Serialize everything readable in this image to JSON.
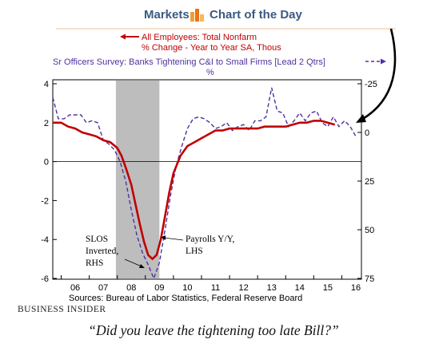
{
  "header": {
    "brand_left": "Markets",
    "brand_right": "Chart of the Day"
  },
  "chart_data": {
    "type": "line",
    "legend": [
      {
        "text": "All Employees: Total Nonfarm",
        "color": "#c00000",
        "marker": "arrow-left"
      },
      {
        "text": "% Change - Year to Year   SA, Thous",
        "color": "#c00000"
      },
      {
        "text": "Sr Officers Survey: Banks Tightening C&I to Small Firms [Lead 2 Qtrs]",
        "color": "#5030a0",
        "marker": "arrow-right"
      },
      {
        "text": "%",
        "color": "#5030a0"
      }
    ],
    "x_tick_labels": [
      "06",
      "07",
      "08",
      "09",
      "10",
      "11",
      "12",
      "13",
      "14",
      "15",
      "16"
    ],
    "y_left": {
      "min": -6,
      "max": 4,
      "ticks": [
        "4",
        "2",
        "0",
        "-2",
        "-4",
        "-6"
      ]
    },
    "y_right": {
      "min": -25,
      "max": 75,
      "inverted": true,
      "ticks": [
        "-25",
        "0",
        "25",
        "50",
        "75"
      ]
    },
    "recession_shading": {
      "start": 2007.95,
      "end": 2009.5,
      "color": "#bdbdbd"
    },
    "zero_line": true,
    "series": [
      {
        "name": "Payrolls Y/Y, LHS",
        "color": "#c00000",
        "style": "solid",
        "axis": "left",
        "x": [
          2005.7,
          2006.0,
          2006.25,
          2006.5,
          2006.75,
          2007.0,
          2007.25,
          2007.5,
          2007.75,
          2008.0,
          2008.15,
          2008.3,
          2008.5,
          2008.65,
          2008.8,
          2008.95,
          2009.1,
          2009.25,
          2009.4,
          2009.55,
          2009.7,
          2009.85,
          2010.0,
          2010.25,
          2010.5,
          2010.75,
          2011.0,
          2011.25,
          2011.5,
          2011.75,
          2012.0,
          2012.25,
          2012.5,
          2012.75,
          2013.0,
          2013.25,
          2013.5,
          2013.75,
          2014.0,
          2014.25,
          2014.5,
          2014.75,
          2015.0,
          2015.25,
          2015.5,
          2015.75
        ],
        "y": [
          2.0,
          2.0,
          1.8,
          1.7,
          1.5,
          1.4,
          1.3,
          1.1,
          1.0,
          0.7,
          0.3,
          -0.3,
          -1.2,
          -2.2,
          -3.2,
          -4.1,
          -4.8,
          -5.0,
          -4.8,
          -4.0,
          -2.8,
          -1.6,
          -0.6,
          0.3,
          0.8,
          1.0,
          1.2,
          1.4,
          1.6,
          1.6,
          1.7,
          1.7,
          1.7,
          1.7,
          1.7,
          1.8,
          1.8,
          1.8,
          1.8,
          1.9,
          2.0,
          2.0,
          2.1,
          2.1,
          2.0,
          1.9
        ]
      },
      {
        "name": "SLOS Inverted, RHS",
        "color": "#5030a0",
        "style": "dashed",
        "axis": "right",
        "x": [
          2005.7,
          2005.9,
          2006.1,
          2006.3,
          2006.5,
          2006.7,
          2006.9,
          2007.1,
          2007.3,
          2007.5,
          2007.7,
          2007.9,
          2008.1,
          2008.3,
          2008.5,
          2008.7,
          2008.9,
          2009.1,
          2009.3,
          2009.5,
          2009.7,
          2009.9,
          2010.1,
          2010.3,
          2010.5,
          2010.7,
          2010.9,
          2011.1,
          2011.3,
          2011.5,
          2011.7,
          2011.9,
          2012.1,
          2012.3,
          2012.5,
          2012.7,
          2012.9,
          2013.1,
          2013.3,
          2013.5,
          2013.7,
          2013.9,
          2014.1,
          2014.3,
          2014.5,
          2014.7,
          2014.9,
          2015.1,
          2015.3,
          2015.5,
          2015.7,
          2015.9,
          2016.1,
          2016.3,
          2016.5
        ],
        "y": [
          -18,
          -7,
          -7,
          -9,
          -9,
          -9,
          -5,
          -6,
          -5,
          4,
          6,
          9,
          15,
          25,
          40,
          53,
          62,
          68,
          75,
          67,
          50,
          32,
          17,
          7,
          -2,
          -7,
          -8,
          -7,
          -5,
          -2,
          -3,
          -5,
          -1,
          -3,
          -4,
          -1,
          -6,
          -6,
          -8,
          -23,
          -11,
          -10,
          -3,
          -6,
          -10,
          -6,
          -10,
          -11,
          -5,
          -3,
          -8,
          -3,
          -6,
          -3,
          2
        ]
      }
    ],
    "annotations": [
      {
        "lines": [
          "SLOS",
          "Inverted,",
          "RHS"
        ],
        "points_to": "SLOS Inverted, RHS"
      },
      {
        "lines": [
          "Payrolls Y/Y,",
          "LHS"
        ],
        "points_to": "Payrolls Y/Y, LHS"
      }
    ],
    "source": "Sources:  Bureau of Labor Statistics, Federal Reserve Board"
  },
  "footer": {
    "logo": "Business Insider"
  },
  "caption": "“Did you leave the tightening too late Bill?”"
}
